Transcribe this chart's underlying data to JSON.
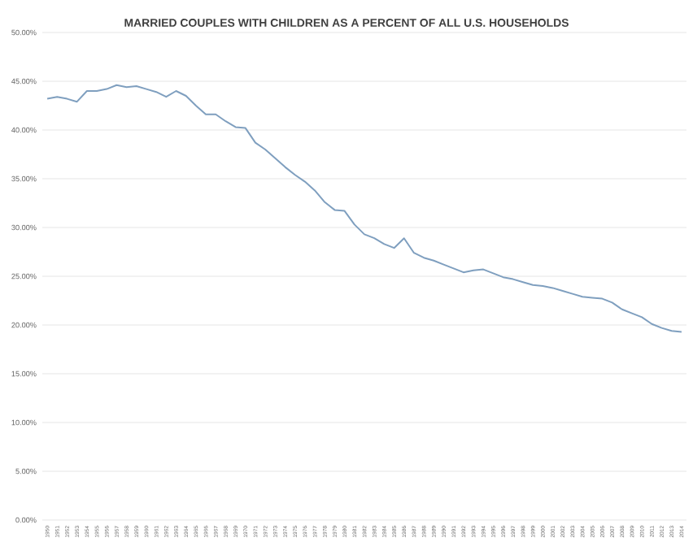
{
  "chart_data": {
    "type": "line",
    "title": "MARRIED COUPLES WITH CHILDREN AS A PERCENT OF ALL U.S. HOUSEHOLDS",
    "categories": [
      "1950",
      "1951",
      "1952",
      "1953",
      "1954",
      "1955",
      "1956",
      "1957",
      "1958",
      "1959",
      "1960",
      "1961",
      "1962",
      "1963",
      "1964",
      "1965",
      "1966",
      "1967",
      "1968",
      "1969",
      "1970",
      "1971",
      "1972",
      "1973",
      "1974",
      "1975",
      "1976",
      "1977",
      "1978",
      "1979",
      "1980",
      "1981",
      "1982",
      "1983",
      "1984",
      "1985",
      "1986",
      "1987",
      "1988",
      "1989",
      "1990",
      "1991",
      "1992",
      "1993",
      "1994",
      "1995",
      "1996",
      "1997",
      "1998",
      "1999",
      "2000",
      "2001",
      "2002",
      "2003",
      "2004",
      "2005",
      "2006",
      "2007",
      "2008",
      "2009",
      "2010",
      "2011",
      "2012",
      "2013",
      "2014"
    ],
    "series": [
      {
        "color": "#7f9fbf",
        "values": [
          43.2,
          43.4,
          43.2,
          42.9,
          44.0,
          44.0,
          44.2,
          44.6,
          44.4,
          44.5,
          44.2,
          43.9,
          43.4,
          44.0,
          43.5,
          42.5,
          41.6,
          41.6,
          40.9,
          40.3,
          40.2,
          38.7,
          38.0,
          37.1,
          36.2,
          35.4,
          34.7,
          33.8,
          32.6,
          31.8,
          31.7,
          30.3,
          29.3,
          28.9,
          28.3,
          27.9,
          28.9,
          27.4,
          26.9,
          26.6,
          26.2,
          25.8,
          25.4,
          25.6,
          25.7,
          25.3,
          24.9,
          24.7,
          24.4,
          24.1,
          24.0,
          23.8,
          23.5,
          23.2,
          22.9,
          22.8,
          22.7,
          22.3,
          21.6,
          21.2,
          20.8,
          20.1,
          19.7,
          19.4,
          19.3
        ]
      }
    ],
    "ylim": [
      0,
      50
    ],
    "yticks": [
      {
        "value": 0,
        "label": "0.00%"
      },
      {
        "value": 5,
        "label": "5.00%"
      },
      {
        "value": 10,
        "label": "10.00%"
      },
      {
        "value": 15,
        "label": "15.00%"
      },
      {
        "value": 20,
        "label": "20.00%"
      },
      {
        "value": 25,
        "label": "25.00%"
      },
      {
        "value": 30,
        "label": "30.00%"
      },
      {
        "value": 35,
        "label": "35.00%"
      },
      {
        "value": 40,
        "label": "40.00%"
      },
      {
        "value": 45,
        "label": "45.00%"
      },
      {
        "value": 50,
        "label": "50.00%"
      }
    ],
    "grid": "y",
    "marker": "none",
    "line_style": "solid"
  }
}
